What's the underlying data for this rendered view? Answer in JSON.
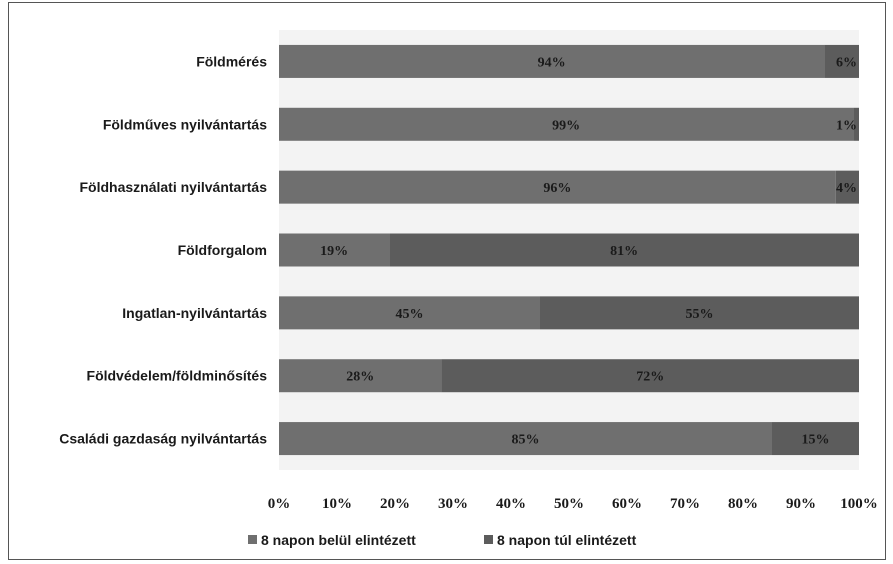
{
  "chart_data": {
    "type": "bar",
    "orientation": "horizontal",
    "stacked": "percent",
    "title": "",
    "xlabel": "",
    "ylabel": "",
    "categories": [
      "Földmérés",
      "Földműves nyilvántartás",
      "Földhasználati nyilvántartás",
      "Földforgalom",
      "Ingatlan-nyilvántartás",
      "Földvédelem/földminősítés",
      "Családi gazdaság nyilvántartás"
    ],
    "series": [
      {
        "name": "8 napon belül elintézett",
        "values": [
          94,
          99,
          96,
          19,
          45,
          28,
          85
        ],
        "labels": [
          "94%",
          "99%",
          "96%",
          "19%",
          "45%",
          "28%",
          "85%"
        ],
        "color": "#6f6f6f"
      },
      {
        "name": "8 napon túl elintézett",
        "values": [
          6,
          1,
          4,
          81,
          55,
          72,
          15
        ],
        "labels": [
          "6%",
          "1%",
          "4%",
          "81%",
          "55%",
          "72%",
          "15%"
        ],
        "color": "#5c5c5c"
      }
    ],
    "xlim": [
      0,
      100
    ],
    "xticks": [
      "0%",
      "10%",
      "20%",
      "30%",
      "40%",
      "50%",
      "60%",
      "70%",
      "80%",
      "90%",
      "100%"
    ],
    "legend": {
      "position": "bottom",
      "entries": [
        "8 napon belül elintézett",
        "8 napon túl elintézett"
      ]
    },
    "grid": false
  }
}
